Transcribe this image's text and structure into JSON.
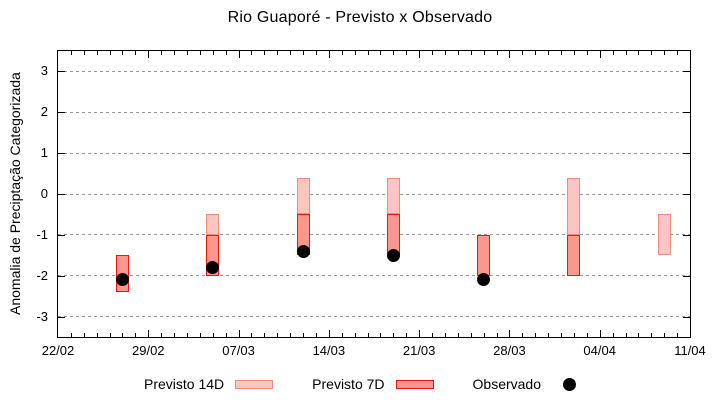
{
  "chart_data": {
    "type": "bar",
    "subtype": "range-bars-with-points",
    "title": "Rio Guaporé - Previsto x Observado",
    "ylabel": "Anomalia de Preciptação Categorizada",
    "ylim": [
      -3.5,
      3.5
    ],
    "y_ticks": [
      3,
      2,
      1,
      0,
      -1,
      -2,
      -3
    ],
    "grid": "horizontal-dashed-gray",
    "x_total_days": 49,
    "x_ticks": [
      {
        "label": "22/02",
        "day": 0
      },
      {
        "label": "29/02",
        "day": 7
      },
      {
        "label": "07/03",
        "day": 14
      },
      {
        "label": "14/03",
        "day": 21
      },
      {
        "label": "21/03",
        "day": 28
      },
      {
        "label": "28/03",
        "day": 35
      },
      {
        "label": "04/04",
        "day": 42
      },
      {
        "label": "11/04",
        "day": 49
      }
    ],
    "series": [
      {
        "name": "Previsto 14D",
        "type": "range-bar",
        "fill": "#f9c6c1",
        "border": "#f08b7d"
      },
      {
        "name": "Previsto 7D",
        "type": "range-bar",
        "fill": "#fa978f",
        "border": "#ee1611"
      },
      {
        "name": "Observado",
        "type": "point",
        "color": "#000000"
      }
    ],
    "groups": [
      {
        "date": "27/02",
        "day": 5,
        "previsto_14d": null,
        "previsto_7d": [
          -2.4,
          -1.5
        ],
        "observado": -2.1
      },
      {
        "date": "05/03",
        "day": 12,
        "previsto_14d": [
          -1.0,
          -0.5
        ],
        "previsto_7d": [
          -2.0,
          -1.0
        ],
        "observado": -1.8
      },
      {
        "date": "12/03",
        "day": 19,
        "previsto_14d": [
          -0.5,
          0.4
        ],
        "previsto_7d": [
          -1.5,
          -0.5
        ],
        "observado": -1.4
      },
      {
        "date": "19/03",
        "day": 26,
        "previsto_14d": [
          -0.5,
          0.4
        ],
        "previsto_7d": [
          -1.5,
          -0.5
        ],
        "observado": -1.5
      },
      {
        "date": "26/03",
        "day": 33,
        "previsto_14d": null,
        "previsto_7d": [
          -2.0,
          -1.0
        ],
        "observado": -2.1
      },
      {
        "date": "02/04",
        "day": 40,
        "previsto_14d": [
          -1.0,
          0.4
        ],
        "previsto_7d": [
          -2.0,
          -1.0
        ],
        "observado": null
      },
      {
        "date": "09/04",
        "day": 47,
        "previsto_14d": [
          -1.5,
          -0.5
        ],
        "previsto_7d": null,
        "observado": null
      }
    ],
    "legend_position": "bottom-center",
    "legend": {
      "previsto_14d": "Previsto 14D",
      "previsto_7d": "Previsto 7D",
      "observado": "Observado"
    }
  }
}
